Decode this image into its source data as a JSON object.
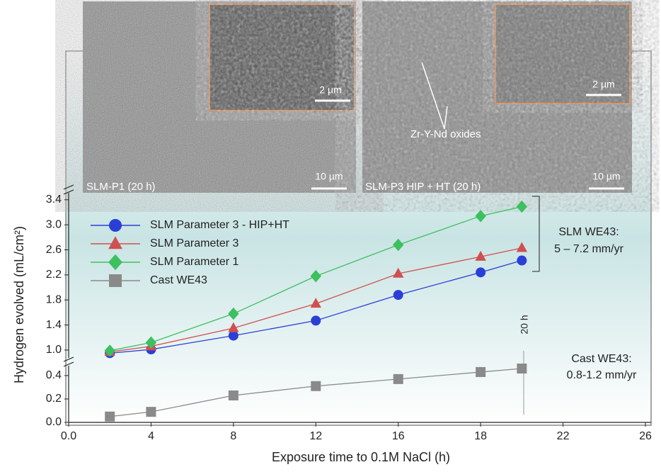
{
  "chart_data": {
    "type": "line",
    "x_label": "Exposure time to 0.1M NaCl (h)",
    "y_label": "Hydrogen evolved (mL/cm²)",
    "x": [
      2,
      4,
      8,
      12,
      16,
      18,
      20
    ],
    "xlim": [
      0,
      26
    ],
    "xticks": [
      {
        "value": 0,
        "label": "0.0"
      },
      4,
      8,
      12,
      16,
      18,
      22,
      26
    ],
    "ylim": [
      0,
      3.5
    ],
    "y_break": [
      0.46,
      0.92
    ],
    "yticks": [
      {
        "value": 0,
        "label": "0.0"
      },
      0.2,
      0.4,
      {
        "value": 1,
        "label": "1.0"
      },
      1.4,
      1.8,
      2.2,
      2.6,
      {
        "value": 3,
        "label": "3.0"
      },
      3.4
    ],
    "series": [
      {
        "name": "SLM Parameter 3 - HIP+HT",
        "color": "#2b3fd6",
        "marker": "circle",
        "values": [
          0.95,
          1.01,
          1.23,
          1.47,
          1.88,
          2.24,
          2.43
        ]
      },
      {
        "name": "SLM Parameter 3",
        "color": "#d05050",
        "marker": "triangle",
        "values": [
          0.97,
          1.06,
          1.35,
          1.74,
          2.22,
          2.49,
          2.63
        ]
      },
      {
        "name": "SLM Parameter 1",
        "color": "#3cc060",
        "marker": "diamond",
        "values": [
          0.99,
          1.12,
          1.58,
          2.18,
          2.68,
          3.14,
          3.29
        ]
      },
      {
        "name": "Cast WE43",
        "color": "#8a8a8a",
        "marker": "square",
        "values": [
          0.05,
          0.09,
          0.23,
          0.31,
          0.37,
          0.43,
          0.46
        ]
      }
    ],
    "annotations": [
      "SLM WE43:",
      "5 – 7.2 mm/yr",
      "Cast WE43:",
      "0.8-1.2 mm/yr",
      "20 h"
    ],
    "images": [
      {
        "caption": "SLM-P1 (20 h)",
        "scale": "10 µm",
        "inset_scale": "2 µm"
      },
      {
        "caption": "SLM-P3 HIP + HT (20 h)",
        "scale": "10 µm",
        "inset_scale": "2 µm",
        "label": "Zr-Y-Nd oxides"
      }
    ]
  }
}
